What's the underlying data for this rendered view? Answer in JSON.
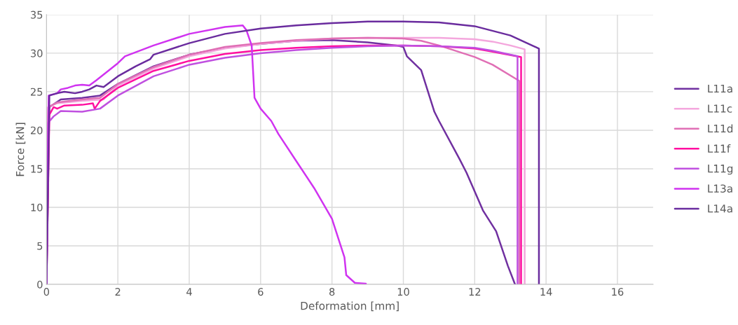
{
  "chart_data": {
    "type": "line",
    "xlabel": "Deformation [mm]",
    "ylabel": "Force [kN]",
    "xlim": [
      0,
      17
    ],
    "xticks": [
      0,
      2,
      4,
      6,
      8,
      10,
      12,
      14,
      16
    ],
    "ylim": [
      0,
      35
    ],
    "yticks": [
      0,
      5,
      10,
      15,
      20,
      25,
      30,
      35
    ],
    "grid": true,
    "legend": "right",
    "marker": "none",
    "line_style": "solid",
    "series": [
      {
        "name": "L11a",
        "color": "#7030a0",
        "x": [
          0,
          0.08,
          0.4,
          1,
          1.5,
          2,
          3,
          4,
          5,
          6,
          7,
          8,
          9,
          9.8,
          10,
          10.1,
          10.5,
          10.87,
          11,
          11.57,
          11.77,
          12.23,
          12.6,
          12.93,
          13.13
        ],
        "values": [
          0,
          23,
          24,
          24.2,
          24.5,
          26,
          28.3,
          29.8,
          30.7,
          31.2,
          31.6,
          31.7,
          31.4,
          31,
          30.8,
          29.6,
          27.8,
          22.4,
          21.2,
          16.3,
          14.5,
          9.6,
          6.9,
          2.4,
          0
        ]
      },
      {
        "name": "L11c",
        "color": "#f4a7dd",
        "x": [
          0,
          0.05,
          0.3,
          1,
          1.6,
          2,
          3,
          4,
          5,
          6,
          7,
          8,
          9,
          10,
          11,
          12,
          12.5,
          13,
          13.4,
          13.4
        ],
        "values": [
          0,
          23,
          23.5,
          23.8,
          24,
          25.8,
          28,
          29.6,
          30.6,
          31.2,
          31.6,
          31.9,
          32,
          32,
          32,
          31.8,
          31.5,
          31,
          30.5,
          0
        ]
      },
      {
        "name": "L11d",
        "color": "#e06fb5",
        "x": [
          0,
          0.05,
          0.3,
          1,
          1.5,
          2,
          3,
          4,
          5,
          6,
          7,
          8,
          9,
          10,
          10.5,
          11,
          12,
          12.5,
          13.25,
          13.25
        ],
        "values": [
          0,
          23,
          23.6,
          24,
          24.2,
          26,
          28.2,
          29.8,
          30.8,
          31.3,
          31.7,
          31.9,
          32,
          31.9,
          31.6,
          31,
          29.5,
          28.5,
          26.4,
          0
        ]
      },
      {
        "name": "L11f",
        "color": "#ff0fa0",
        "x": [
          0,
          0.08,
          0.2,
          0.3,
          0.5,
          1,
          1.3,
          1.35,
          1.5,
          2,
          3,
          4,
          5,
          6,
          7,
          8,
          9,
          10,
          11,
          12,
          12.5,
          13.3,
          13.3
        ],
        "values": [
          0,
          22,
          23,
          22.8,
          23.2,
          23.3,
          23.5,
          22.8,
          23.8,
          25.5,
          27.7,
          29,
          29.9,
          30.4,
          30.7,
          30.9,
          31,
          31,
          30.9,
          30.6,
          30.2,
          29.5,
          0
        ]
      },
      {
        "name": "L11g",
        "color": "#c050e0",
        "x": [
          0,
          0.05,
          0.2,
          0.4,
          1,
          1.5,
          2,
          3,
          4,
          5,
          6,
          7,
          8,
          9,
          10,
          11,
          12,
          12.5,
          13.2,
          13.2
        ],
        "values": [
          0,
          21,
          21.8,
          22.5,
          22.4,
          22.8,
          24.5,
          27,
          28.5,
          29.4,
          30,
          30.4,
          30.7,
          30.9,
          31,
          30.9,
          30.7,
          30.3,
          29.6,
          0
        ]
      },
      {
        "name": "L13a",
        "color": "#d033f0",
        "x": [
          0,
          0.06,
          0.3,
          0.4,
          0.6,
          0.8,
          1,
          1.2,
          1.4,
          2,
          2.2,
          3,
          4,
          5,
          5.5,
          5.6,
          5.75,
          5.83,
          6,
          6.3,
          6.5,
          7,
          7.5,
          8,
          8.35,
          8.4,
          8.64,
          8.95
        ],
        "values": [
          0,
          24.5,
          24.8,
          25.3,
          25.5,
          25.8,
          25.9,
          25.8,
          26.5,
          28.7,
          29.6,
          31,
          32.5,
          33.4,
          33.6,
          33,
          31,
          24.2,
          22.8,
          21.2,
          19.5,
          16,
          12.5,
          8.5,
          3.5,
          1.2,
          0.2,
          0.1
        ]
      },
      {
        "name": "L14a",
        "color": "#6a2c9e",
        "x": [
          0,
          0.08,
          0.3,
          0.5,
          0.8,
          1,
          1.2,
          1.4,
          1.6,
          2,
          2.5,
          2.9,
          3,
          4,
          5,
          6,
          7,
          8,
          9,
          10,
          11,
          12,
          13,
          13.8,
          13.8
        ],
        "values": [
          0,
          24.5,
          24.8,
          25,
          24.8,
          25,
          25.3,
          25.8,
          25.6,
          27,
          28.3,
          29.2,
          29.8,
          31.3,
          32.5,
          33.2,
          33.6,
          33.9,
          34.1,
          34.1,
          34,
          33.5,
          32.3,
          30.6,
          0
        ]
      }
    ]
  }
}
